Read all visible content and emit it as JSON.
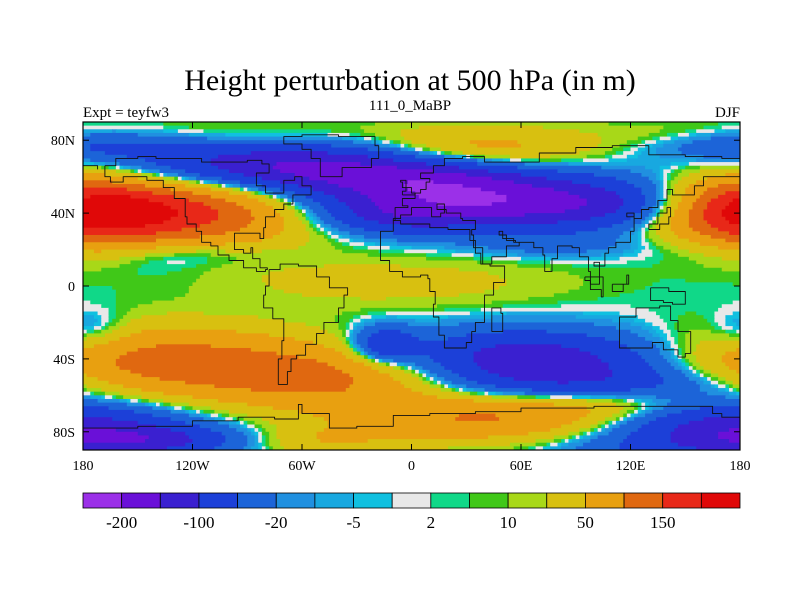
{
  "chart_data": {
    "type": "heatmap",
    "title": "Height perturbation at 500 hPa (in m)",
    "left_string": "Expt = teyfw3",
    "center_string": "111_0_MaBP",
    "right_string": "DJF",
    "x_ticks": [
      {
        "value": -180,
        "label": "180"
      },
      {
        "value": -120,
        "label": "120W"
      },
      {
        "value": -60,
        "label": "60W"
      },
      {
        "value": 0,
        "label": "0"
      },
      {
        "value": 60,
        "label": "60E"
      },
      {
        "value": 120,
        "label": "120E"
      },
      {
        "value": 180,
        "label": "180"
      }
    ],
    "y_ticks": [
      {
        "value": 80,
        "label": "80N"
      },
      {
        "value": 40,
        "label": "40N"
      },
      {
        "value": 0,
        "label": "0"
      },
      {
        "value": -40,
        "label": "40S"
      },
      {
        "value": -80,
        "label": "80S"
      }
    ],
    "xlim": [
      -180,
      180
    ],
    "ylim": [
      -90,
      90
    ],
    "levels": [
      -200,
      -150,
      -100,
      -50,
      -20,
      -10,
      -5,
      -2,
      2,
      5,
      10,
      20,
      50,
      100,
      150,
      200
    ],
    "colorbar_labels": [
      {
        "after_box": 1,
        "label": "-200"
      },
      {
        "after_box": 3,
        "label": "-100"
      },
      {
        "after_box": 5,
        "label": "-20"
      },
      {
        "after_box": 7,
        "label": "-5"
      },
      {
        "after_box": 9,
        "label": "2"
      },
      {
        "after_box": 11,
        "label": "10"
      },
      {
        "after_box": 13,
        "label": "50"
      },
      {
        "after_box": 15,
        "label": "150"
      }
    ],
    "colors": [
      "#9b30e8",
      "#6a10d8",
      "#3a20d0",
      "#1c40d8",
      "#1c64d8",
      "#2090e0",
      "#18a8e0",
      "#10c0e0",
      "#e8e8e8",
      "#10d888",
      "#40c818",
      "#a8d818",
      "#d8c010",
      "#e8a010",
      "#e06810",
      "#e82818",
      "#e00808"
    ],
    "field_description": "500 hPa geopotential height anomaly (m), DJF"
  }
}
